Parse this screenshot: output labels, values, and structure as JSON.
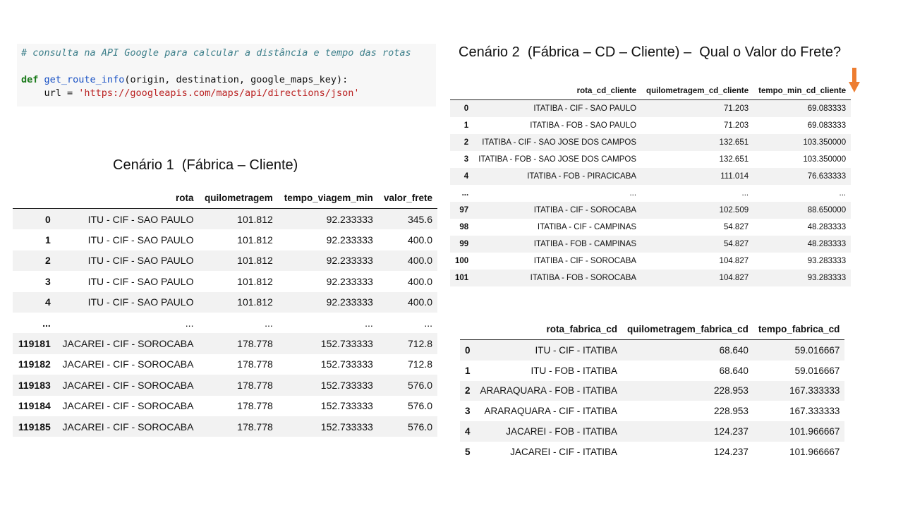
{
  "code": {
    "comment": "# consulta na API Google para calcular a distância e tempo das rotas",
    "def_kw": "def",
    "func_name": "get_route_info",
    "params": "(origin, destination, google_maps_key):",
    "url_prefix": "    url = ",
    "url_string": "'https://googleapis.com/maps/api/directions/json'"
  },
  "scenario1": {
    "title": "Cenário 1  (Fábrica – Cliente)",
    "columns": [
      "",
      "rota",
      "quilometragem",
      "tempo_viagem_min",
      "valor_frete"
    ],
    "rows": [
      [
        "0",
        "ITU - CIF - SAO PAULO",
        "101.812",
        "92.233333",
        "345.6"
      ],
      [
        "1",
        "ITU - CIF - SAO PAULO",
        "101.812",
        "92.233333",
        "400.0"
      ],
      [
        "2",
        "ITU - CIF - SAO PAULO",
        "101.812",
        "92.233333",
        "400.0"
      ],
      [
        "3",
        "ITU - CIF - SAO PAULO",
        "101.812",
        "92.233333",
        "400.0"
      ],
      [
        "4",
        "ITU - CIF - SAO PAULO",
        "101.812",
        "92.233333",
        "400.0"
      ],
      [
        "...",
        "...",
        "...",
        "...",
        "..."
      ],
      [
        "119181",
        "JACAREI - CIF - SOROCABA",
        "178.778",
        "152.733333",
        "712.8"
      ],
      [
        "119182",
        "JACAREI - CIF - SOROCABA",
        "178.778",
        "152.733333",
        "712.8"
      ],
      [
        "119183",
        "JACAREI - CIF - SOROCABA",
        "178.778",
        "152.733333",
        "576.0"
      ],
      [
        "119184",
        "JACAREI - CIF - SOROCABA",
        "178.778",
        "152.733333",
        "576.0"
      ],
      [
        "119185",
        "JACAREI - CIF - SOROCABA",
        "178.778",
        "152.733333",
        "576.0"
      ]
    ]
  },
  "scenario2": {
    "title": "Cenário 2  (Fábrica – CD – Cliente) –  Qual o Valor do Frete?",
    "arrow_color": "#ed7d31",
    "cd_cliente": {
      "columns": [
        "",
        "rota_cd_cliente",
        "quilometragem_cd_cliente",
        "tempo_min_cd_cliente"
      ],
      "rows": [
        [
          "0",
          "ITATIBA - CIF - SAO PAULO",
          "71.203",
          "69.083333"
        ],
        [
          "1",
          "ITATIBA - FOB - SAO PAULO",
          "71.203",
          "69.083333"
        ],
        [
          "2",
          "ITATIBA - CIF - SAO JOSE DOS CAMPOS",
          "132.651",
          "103.350000"
        ],
        [
          "3",
          "ITATIBA - FOB - SAO JOSE DOS CAMPOS",
          "132.651",
          "103.350000"
        ],
        [
          "4",
          "ITATIBA - FOB - PIRACICABA",
          "111.014",
          "76.633333"
        ],
        [
          "...",
          "...",
          "...",
          "..."
        ],
        [
          "97",
          "ITATIBA - CIF - SOROCABA",
          "102.509",
          "88.650000"
        ],
        [
          "98",
          "ITATIBA - CIF - CAMPINAS",
          "54.827",
          "48.283333"
        ],
        [
          "99",
          "ITATIBA - FOB - CAMPINAS",
          "54.827",
          "48.283333"
        ],
        [
          "100",
          "ITATIBA - CIF - SOROCABA",
          "104.827",
          "93.283333"
        ],
        [
          "101",
          "ITATIBA - FOB - SOROCABA",
          "104.827",
          "93.283333"
        ]
      ]
    },
    "fabrica_cd": {
      "columns": [
        "",
        "rota_fabrica_cd",
        "quilometragem_fabrica_cd",
        "tempo_fabrica_cd"
      ],
      "rows": [
        [
          "0",
          "ITU - CIF - ITATIBA",
          "68.640",
          "59.016667"
        ],
        [
          "1",
          "ITU - FOB - ITATIBA",
          "68.640",
          "59.016667"
        ],
        [
          "2",
          "ARARAQUARA - FOB - ITATIBA",
          "228.953",
          "167.333333"
        ],
        [
          "3",
          "ARARAQUARA - CIF - ITATIBA",
          "228.953",
          "167.333333"
        ],
        [
          "4",
          "JACAREI - FOB - ITATIBA",
          "124.237",
          "101.966667"
        ],
        [
          "5",
          "JACAREI - CIF - ITATIBA",
          "124.237",
          "101.966667"
        ]
      ]
    }
  }
}
